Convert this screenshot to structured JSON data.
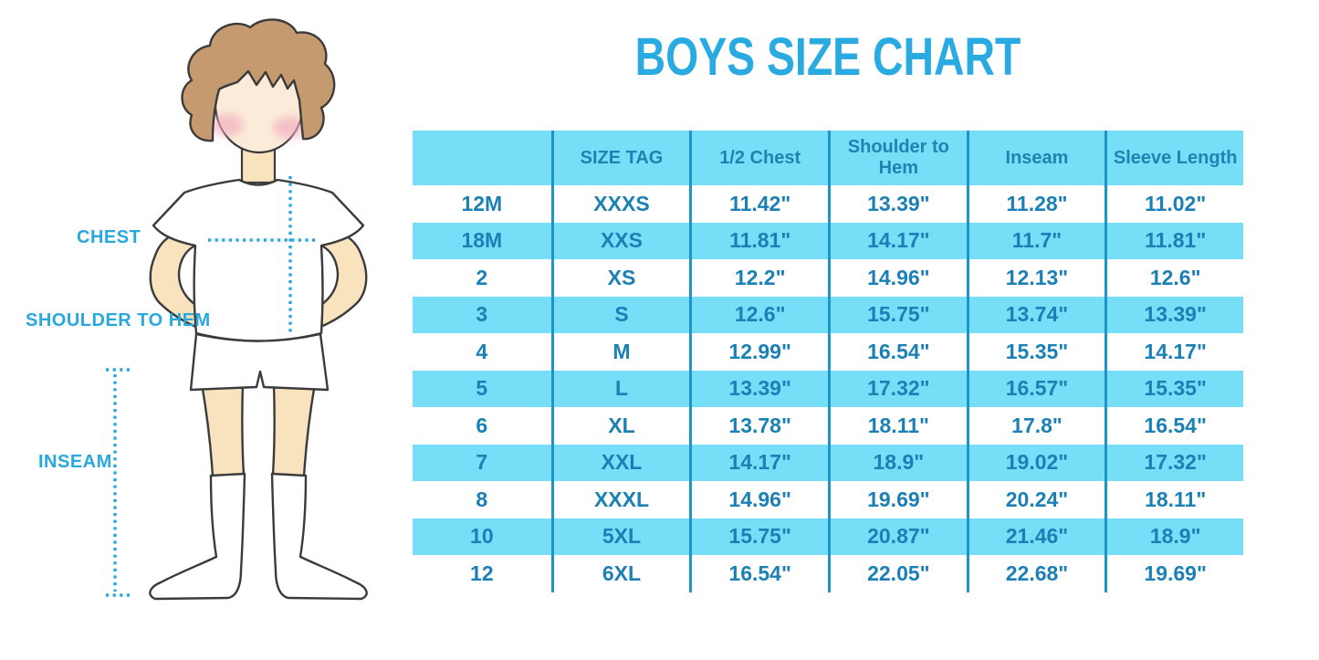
{
  "title": "BOYS SIZE CHART",
  "figure": {
    "labels": {
      "chest": "CHEST",
      "shoulder_to_hem": "SHOULDER TO HEM",
      "inseam": "INSEAM"
    }
  },
  "chart_data": {
    "type": "table",
    "title": "BOYS SIZE CHART",
    "columns": [
      "",
      "SIZE TAG",
      "1/2 Chest",
      "Shoulder to Hem",
      "Inseam",
      "Sleeve Length"
    ],
    "rows": [
      [
        "12M",
        "XXXS",
        "11.42\"",
        "13.39\"",
        "11.28\"",
        "11.02\""
      ],
      [
        "18M",
        "XXS",
        "11.81\"",
        "14.17\"",
        "11.7\"",
        "11.81\""
      ],
      [
        "2",
        "XS",
        "12.2\"",
        "14.96\"",
        "12.13\"",
        "12.6\""
      ],
      [
        "3",
        "S",
        "12.6\"",
        "15.75\"",
        "13.74\"",
        "13.39\""
      ],
      [
        "4",
        "M",
        "12.99\"",
        "16.54\"",
        "15.35\"",
        "14.17\""
      ],
      [
        "5",
        "L",
        "13.39\"",
        "17.32\"",
        "16.57\"",
        "15.35\""
      ],
      [
        "6",
        "XL",
        "13.78\"",
        "18.11\"",
        "17.8\"",
        "16.54\""
      ],
      [
        "7",
        "XXL",
        "14.17\"",
        "18.9\"",
        "19.02\"",
        "17.32\""
      ],
      [
        "8",
        "XXXL",
        "14.96\"",
        "19.69\"",
        "20.24\"",
        "18.11\""
      ],
      [
        "10",
        "5XL",
        "15.75\"",
        "20.87\"",
        "21.46\"",
        "18.9\""
      ],
      [
        "12",
        "6XL",
        "16.54\"",
        "22.05\"",
        "22.68\"",
        "19.69\""
      ]
    ],
    "striped_rows_cyan": [
      1,
      3,
      5,
      7,
      9
    ],
    "legend_position": "none",
    "grid": "vertical column separators only"
  },
  "colors": {
    "title_blue": "#29ABE2",
    "label_blue": "#29A8E0",
    "cell_cyan": "#76DFF7",
    "grid_line_blue": "#1E95C7",
    "cell_text_blue": "#1B80B5",
    "dotted_line_blue": "#29A8E0",
    "skin": "#F9E3BE",
    "face_skin": "#FBEBD9",
    "hair_brown": "#C49A6E",
    "blush_pink": "#F2A9BE",
    "outline": "#3B3B3B"
  }
}
